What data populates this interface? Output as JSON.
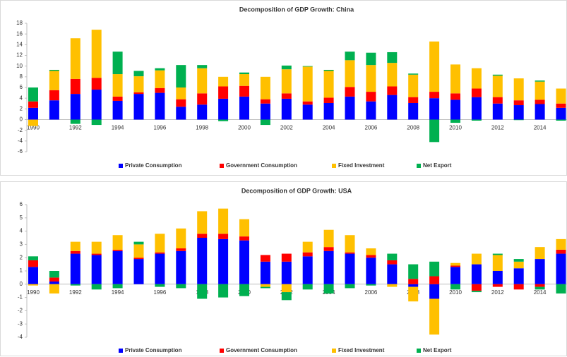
{
  "chart_data": [
    {
      "type": "bar",
      "stacked": true,
      "title": "Decomposition of GDP Growth: China",
      "categories": [
        1990,
        null,
        1992,
        null,
        1994,
        null,
        1996,
        null,
        1998,
        null,
        2000,
        null,
        2002,
        null,
        2004,
        null,
        2006,
        null,
        2008,
        null,
        2010,
        null,
        2012,
        null,
        2014,
        null
      ],
      "ylim": [
        -6,
        18
      ],
      "yticks": [
        -6,
        -4,
        -2,
        0,
        2,
        4,
        6,
        8,
        10,
        12,
        14,
        16,
        18
      ],
      "series": [
        {
          "name": "Private Consumption",
          "color": "#0000ff",
          "values": [
            2.2,
            3.6,
            4.8,
            5.6,
            3.5,
            4.8,
            5.0,
            2.4,
            2.8,
            3.9,
            4.3,
            3.0,
            3.9,
            2.8,
            3.1,
            4.3,
            3.4,
            4.6,
            3.1,
            4.0,
            3.7,
            4.2,
            3.0,
            2.7,
            2.9,
            2.2
          ]
        },
        {
          "name": "Government Consumption",
          "color": "#ff0000",
          "values": [
            1.2,
            1.9,
            2.8,
            2.2,
            0.8,
            0.3,
            0.9,
            1.4,
            2.1,
            2.3,
            2.0,
            0.8,
            1.0,
            0.6,
            1.0,
            1.8,
            1.8,
            1.6,
            1.1,
            1.2,
            1.2,
            1.6,
            1.2,
            0.9,
            0.8,
            0.8
          ]
        },
        {
          "name": "Fixed Investment",
          "color": "#ffc000",
          "values": [
            -1.2,
            3.6,
            7.6,
            9.0,
            4.2,
            3.0,
            3.3,
            2.2,
            4.7,
            1.8,
            2.2,
            4.2,
            4.5,
            6.5,
            5.0,
            5.0,
            5.0,
            4.4,
            4.2,
            9.4,
            5.4,
            3.8,
            4.0,
            4.1,
            3.4,
            2.8
          ]
        },
        {
          "name": "Net Export",
          "color": "#00b050",
          "values": [
            2.6,
            0.2,
            -0.8,
            -1.0,
            4.2,
            1.0,
            0.4,
            4.2,
            0.6,
            -0.3,
            0.3,
            -1.0,
            0.7,
            0.1,
            0.2,
            1.6,
            2.3,
            2.0,
            0.2,
            -4.2,
            -0.6,
            -0.2,
            0.2,
            -0.1,
            0.2,
            -0.2
          ]
        }
      ]
    },
    {
      "type": "bar",
      "stacked": true,
      "title": "Decomposition of GDP Growth: USA",
      "categories": [
        1990,
        null,
        1992,
        null,
        1994,
        null,
        1996,
        null,
        1998,
        null,
        2000,
        null,
        2002,
        null,
        2004,
        null,
        2006,
        null,
        2008,
        null,
        2010,
        null,
        2012,
        null,
        2014,
        null
      ],
      "ylim": [
        -4,
        6
      ],
      "yticks": [
        -4,
        -3,
        -2,
        -1,
        0,
        1,
        2,
        3,
        4,
        5,
        6
      ],
      "series": [
        {
          "name": "Private Consumption",
          "color": "#0000ff",
          "values": [
            1.3,
            0.2,
            2.3,
            2.2,
            2.5,
            1.9,
            2.3,
            2.5,
            3.5,
            3.4,
            3.3,
            1.7,
            1.7,
            2.1,
            2.5,
            2.3,
            2.0,
            1.5,
            -0.2,
            -1.1,
            1.3,
            1.5,
            1.0,
            1.2,
            1.9,
            2.3
          ]
        },
        {
          "name": "Government Consumption",
          "color": "#ff0000",
          "values": [
            0.5,
            0.3,
            0.2,
            0.1,
            0.1,
            0.1,
            0.1,
            0.2,
            0.3,
            0.4,
            0.3,
            0.5,
            0.6,
            0.3,
            0.3,
            0.1,
            0.2,
            0.3,
            0.4,
            0.6,
            0.1,
            -0.5,
            -0.2,
            -0.4,
            -0.2,
            0.3
          ]
        },
        {
          "name": "Fixed Investment",
          "color": "#ffc000",
          "values": [
            -0.1,
            -0.7,
            0.7,
            0.9,
            1.1,
            1.0,
            1.4,
            1.5,
            1.7,
            1.9,
            1.3,
            -0.2,
            -0.6,
            0.8,
            1.3,
            1.3,
            0.5,
            -0.2,
            -1.1,
            -2.7,
            0.2,
            0.8,
            1.2,
            0.5,
            0.9,
            0.8
          ]
        },
        {
          "name": "Net Export",
          "color": "#00b050",
          "values": [
            0.3,
            0.5,
            -0.1,
            -0.4,
            -0.3,
            0.2,
            -0.2,
            -0.3,
            -1.1,
            -1.0,
            -0.9,
            -0.1,
            -0.6,
            -0.4,
            -0.7,
            -0.3,
            -0.1,
            0.5,
            1.1,
            1.1,
            -0.4,
            -0.1,
            0.1,
            0.2,
            -0.2,
            -0.7
          ]
        }
      ]
    }
  ]
}
